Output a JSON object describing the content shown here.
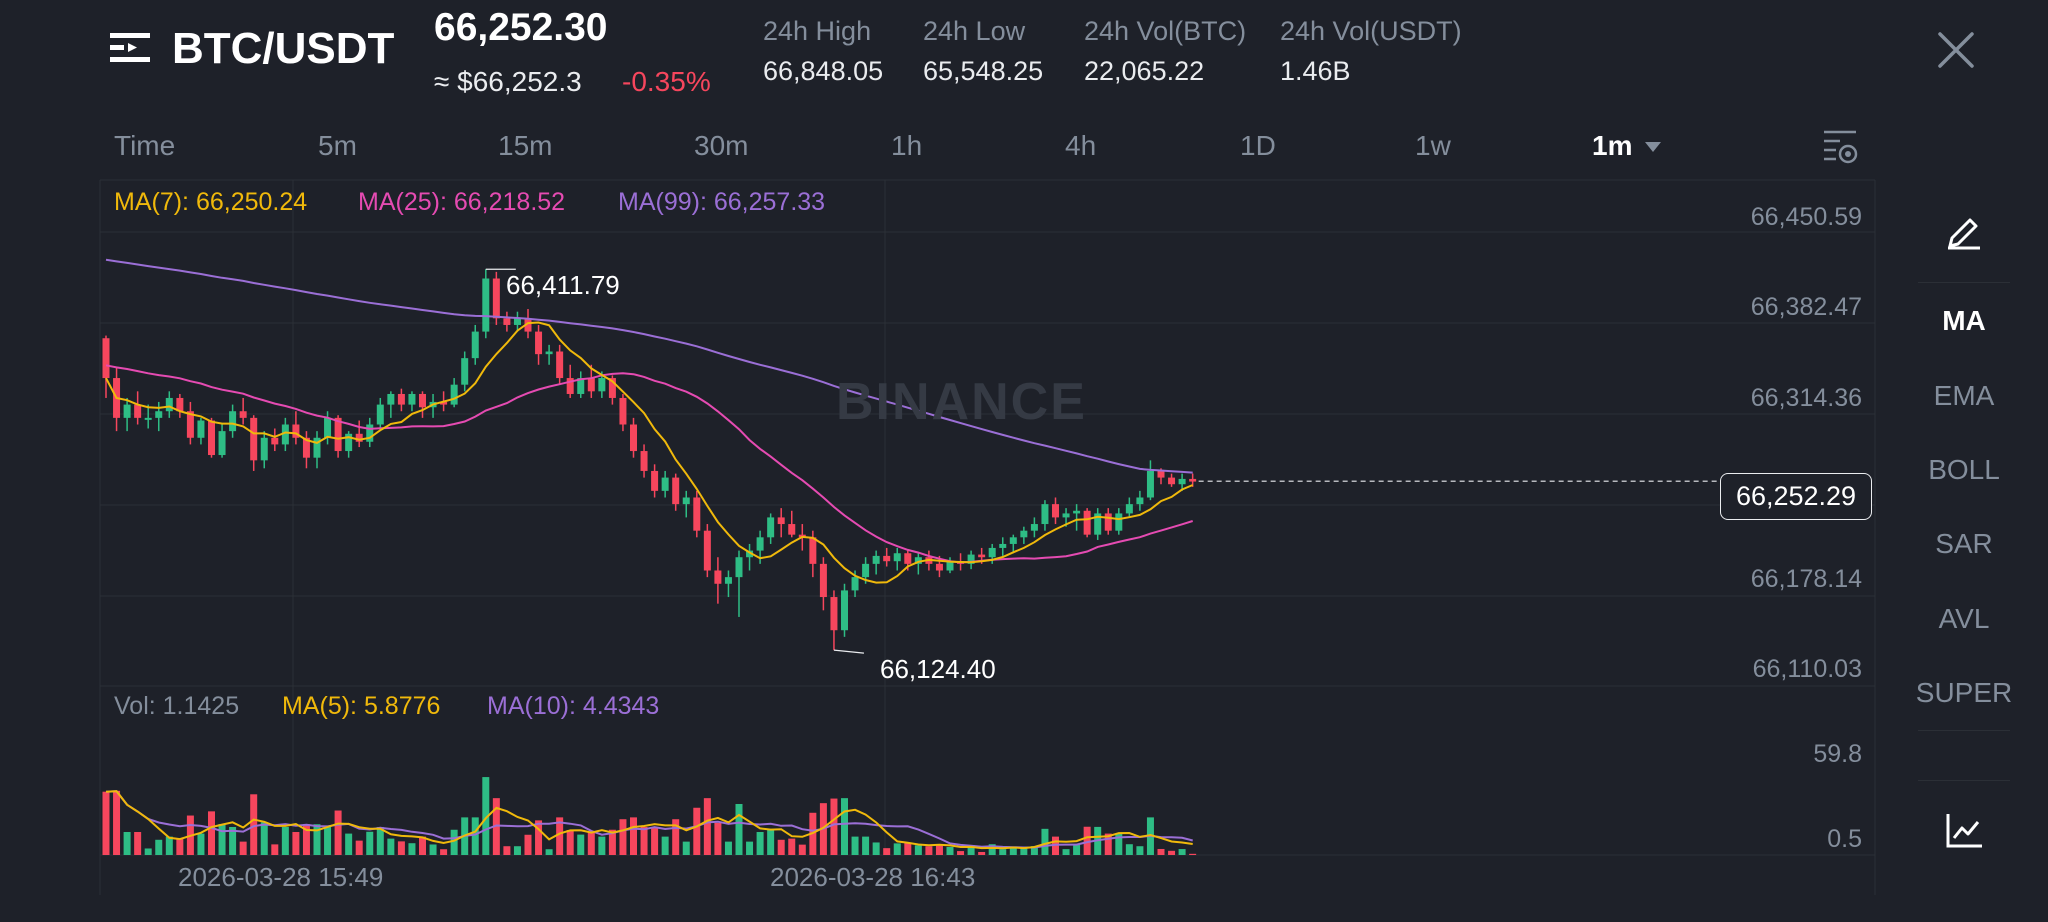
{
  "header": {
    "pair": "BTC/USDT",
    "price": "66,252.30",
    "approx": "≈ $66,252.3",
    "change": "-0.35%",
    "stats": [
      {
        "label": "24h High",
        "value": "66,848.05"
      },
      {
        "label": "24h Low",
        "value": "65,548.25"
      },
      {
        "label": "24h Vol(BTC)",
        "value": "22,065.22"
      },
      {
        "label": "24h Vol(USDT)",
        "value": "1.46B"
      }
    ]
  },
  "tabs": [
    "Time",
    "5m",
    "15m",
    "30m",
    "1h",
    "4h",
    "1D",
    "1w",
    "1m"
  ],
  "active_tab": "1m",
  "legend": {
    "ma7": "MA(7): 66,250.24",
    "ma25": "MA(25): 66,218.52",
    "ma99": "MA(99): 66,257.33"
  },
  "vol_legend": {
    "vol": "Vol: 1.1425",
    "ma5": "MA(5): 5.8776",
    "ma10": "MA(10): 4.4343"
  },
  "price_axis": [
    "66,450.59",
    "66,382.47",
    "66,314.36",
    "66,178.14",
    "66,110.03"
  ],
  "vol_axis": [
    "59.8",
    "0.5"
  ],
  "current_price": "66,252.29",
  "high_marker": "66,411.79",
  "low_marker": "66,124.40",
  "dates": [
    "2026-03-28 15:49",
    "2026-03-28 16:43"
  ],
  "watermark": "BINANCE",
  "side_menu": [
    "MA",
    "EMA",
    "BOLL",
    "SAR",
    "AVL",
    "SUPER"
  ],
  "colors": {
    "up": "#2ebd85",
    "down": "#f6465d",
    "ma7": "#f0b90b",
    "ma25": "#e54bb2",
    "ma99": "#9b6fd6",
    "background": "#1e2129"
  },
  "icons": {
    "menu": "menu-lines-icon",
    "close": "close-icon",
    "settings": "chart-settings-icon",
    "draw": "pencil-icon",
    "indicator": "line-chart-icon"
  },
  "chart_data": {
    "type": "candlestick",
    "interval": "1m",
    "price_axis_ticks": [
      66450.59,
      66382.47,
      66314.36,
      66178.14,
      66110.03
    ],
    "ohlc": [
      [
        66360,
        66362,
        66315,
        66330
      ],
      [
        66330,
        66338,
        66290,
        66300
      ],
      [
        66300,
        66315,
        66290,
        66310
      ],
      [
        66310,
        66320,
        66295,
        66300
      ],
      [
        66300,
        66310,
        66292,
        66300
      ],
      [
        66300,
        66312,
        66290,
        66305
      ],
      [
        66305,
        66320,
        66300,
        66315
      ],
      [
        66315,
        66318,
        66300,
        66305
      ],
      [
        66305,
        66312,
        66280,
        66285
      ],
      [
        66285,
        66300,
        66280,
        66298
      ],
      [
        66298,
        66300,
        66270,
        66272
      ],
      [
        66272,
        66295,
        66270,
        66290
      ],
      [
        66290,
        66310,
        66285,
        66305
      ],
      [
        66305,
        66315,
        66295,
        66300
      ],
      [
        66300,
        66302,
        66260,
        66268
      ],
      [
        66268,
        66290,
        66262,
        66285
      ],
      [
        66285,
        66292,
        66275,
        66280
      ],
      [
        66280,
        66300,
        66275,
        66295
      ],
      [
        66295,
        66305,
        66280,
        66285
      ],
      [
        66285,
        66290,
        66262,
        66270
      ],
      [
        66270,
        66290,
        66262,
        66285
      ],
      [
        66285,
        66305,
        66280,
        66300
      ],
      [
        66300,
        66302,
        66270,
        66275
      ],
      [
        66275,
        66290,
        66270,
        66288
      ],
      [
        66288,
        66298,
        66278,
        66282
      ],
      [
        66282,
        66300,
        66278,
        66295
      ],
      [
        66295,
        66315,
        66290,
        66310
      ],
      [
        66310,
        66320,
        66300,
        66318
      ],
      [
        66318,
        66322,
        66305,
        66310
      ],
      [
        66310,
        66320,
        66305,
        66318
      ],
      [
        66318,
        66320,
        66300,
        66308
      ],
      [
        66308,
        66318,
        66300,
        66312
      ],
      [
        66312,
        66320,
        66305,
        66310
      ],
      [
        66310,
        66330,
        66308,
        66325
      ],
      [
        66325,
        66350,
        66320,
        66345
      ],
      [
        66345,
        66370,
        66340,
        66365
      ],
      [
        66365,
        66412,
        66360,
        66405
      ],
      [
        66405,
        66410,
        66370,
        66375
      ],
      [
        66375,
        66380,
        66365,
        66370
      ],
      [
        66370,
        66380,
        66365,
        66375
      ],
      [
        66375,
        66382,
        66360,
        66365
      ],
      [
        66365,
        66370,
        66340,
        66348
      ],
      [
        66348,
        66355,
        66340,
        66350
      ],
      [
        66350,
        66355,
        66325,
        66330
      ],
      [
        66330,
        66340,
        66315,
        66318
      ],
      [
        66318,
        66335,
        66315,
        66330
      ],
      [
        66330,
        66340,
        66315,
        66320
      ],
      [
        66320,
        66335,
        66315,
        66330
      ],
      [
        66330,
        66332,
        66310,
        66315
      ],
      [
        66315,
        66318,
        66290,
        66295
      ],
      [
        66295,
        66300,
        66270,
        66275
      ],
      [
        66275,
        66280,
        66255,
        66260
      ],
      [
        66260,
        66265,
        66240,
        66245
      ],
      [
        66245,
        66260,
        66240,
        66255
      ],
      [
        66255,
        66258,
        66230,
        66235
      ],
      [
        66235,
        66245,
        66225,
        66240
      ],
      [
        66240,
        66245,
        66210,
        66215
      ],
      [
        66215,
        66220,
        66180,
        66185
      ],
      [
        66185,
        66195,
        66160,
        66175
      ],
      [
        66175,
        66185,
        66165,
        66180
      ],
      [
        66180,
        66200,
        66150,
        66195
      ],
      [
        66195,
        66205,
        66185,
        66200
      ],
      [
        66200,
        66215,
        66190,
        66210
      ],
      [
        66210,
        66228,
        66205,
        66225
      ],
      [
        66225,
        66232,
        66210,
        66220
      ],
      [
        66220,
        66230,
        66210,
        66212
      ],
      [
        66212,
        66220,
        66200,
        66210
      ],
      [
        66210,
        66215,
        66180,
        66190
      ],
      [
        66190,
        66195,
        66155,
        66165
      ],
      [
        66165,
        66170,
        66125,
        66140
      ],
      [
        66140,
        66175,
        66135,
        66170
      ],
      [
        66170,
        66185,
        66165,
        66180
      ],
      [
        66180,
        66195,
        66175,
        66190
      ],
      [
        66190,
        66200,
        66182,
        66196
      ],
      [
        66196,
        66202,
        66188,
        66192
      ],
      [
        66192,
        66202,
        66185,
        66198
      ],
      [
        66198,
        66200,
        66185,
        66190
      ],
      [
        66190,
        66198,
        66182,
        66195
      ],
      [
        66195,
        66200,
        66185,
        66190
      ],
      [
        66190,
        66196,
        66180,
        66185
      ],
      [
        66185,
        66195,
        66183,
        66192
      ],
      [
        66192,
        66198,
        66185,
        66190
      ],
      [
        66190,
        66200,
        66186,
        66197
      ],
      [
        66197,
        66202,
        66190,
        66195
      ],
      [
        66195,
        66205,
        66190,
        66202
      ],
      [
        66202,
        66210,
        66196,
        66205
      ],
      [
        66205,
        66212,
        66198,
        66210
      ],
      [
        66210,
        66218,
        66205,
        66215
      ],
      [
        66215,
        66225,
        66210,
        66220
      ],
      [
        66220,
        66238,
        66215,
        66235
      ],
      [
        66235,
        66240,
        66220,
        66225
      ],
      [
        66225,
        66232,
        66218,
        66228
      ],
      [
        66228,
        66235,
        66215,
        66230
      ],
      [
        66230,
        66232,
        66210,
        66212
      ],
      [
        66212,
        66232,
        66208,
        66228
      ],
      [
        66228,
        66232,
        66212,
        66215
      ],
      [
        66215,
        66232,
        66212,
        66228
      ],
      [
        66228,
        66240,
        66225,
        66235
      ],
      [
        66235,
        66245,
        66230,
        66240
      ],
      [
        66240,
        66268,
        66238,
        66260
      ],
      [
        66260,
        66262,
        66250,
        66255
      ],
      [
        66255,
        66258,
        66248,
        66250
      ],
      [
        66250,
        66258,
        66245,
        66254
      ],
      [
        66254,
        66258,
        66248,
        66252
      ]
    ],
    "annotations": {
      "high": 66411.79,
      "low": 66124.4,
      "current": 66252.29
    },
    "time_labels": [
      "2026-03-28 15:49",
      "2026-03-28 16:43"
    ]
  }
}
